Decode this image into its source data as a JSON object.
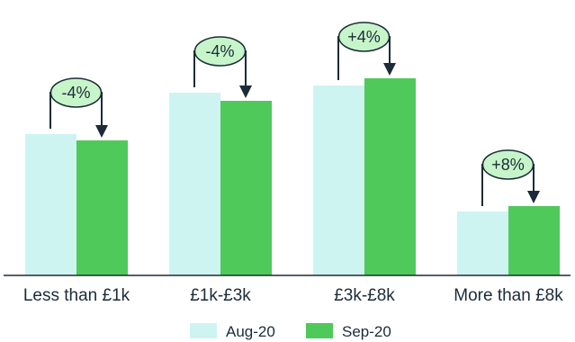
{
  "chart_data": {
    "type": "bar",
    "title": "",
    "xlabel": "",
    "ylabel": "",
    "categories": [
      "Less than £1k",
      "£1k-£3k",
      "£3k-£8k",
      "More than £8k"
    ],
    "series": [
      {
        "name": "Aug-20",
        "color": "#cdf4f1",
        "values": [
          157,
          203,
          211,
          71
        ]
      },
      {
        "name": "Sep-20",
        "color": "#4fc95a",
        "values": [
          150,
          194,
          219,
          77
        ]
      }
    ],
    "changes": [
      "-4%",
      "-4%",
      "+4%",
      "+8%"
    ],
    "ylim": [
      0,
      260
    ],
    "grid": false,
    "legend_position": "bottom-center",
    "badge_color": "#c6f5c9"
  }
}
